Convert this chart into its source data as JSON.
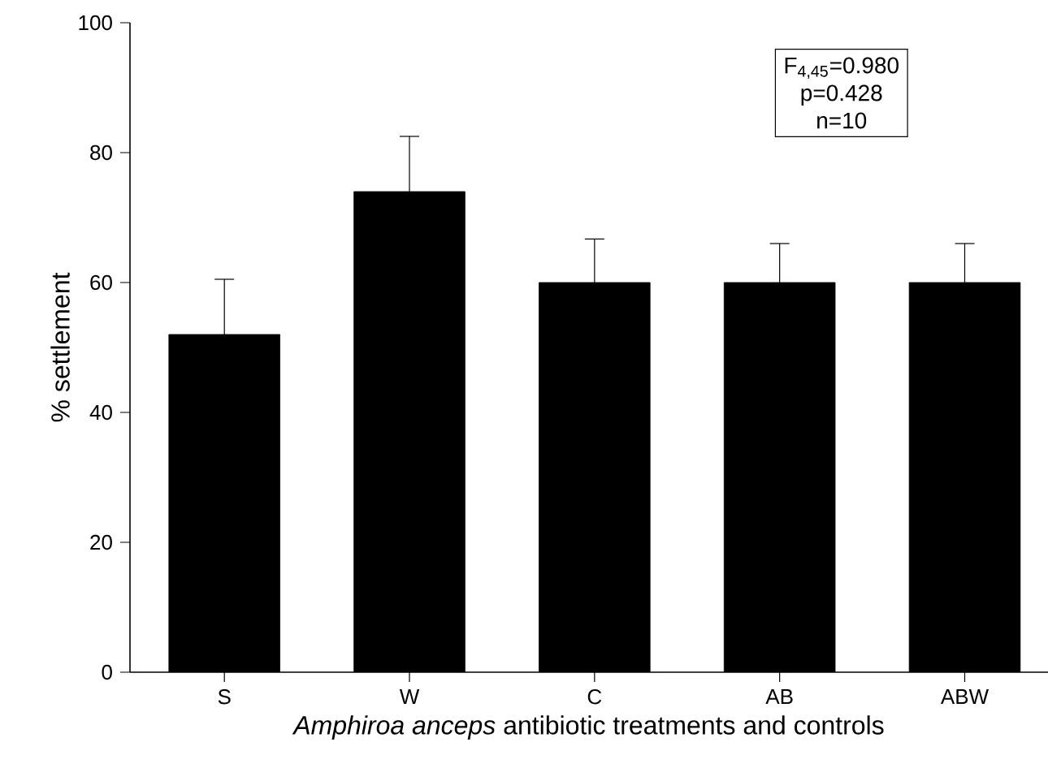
{
  "chart_data": {
    "type": "bar",
    "xlabel": "*Amphiroa anceps* antibiotic treatments and controls",
    "ylabel": "% settlement",
    "categories": [
      "S",
      "W",
      "C",
      "AB",
      "ABW"
    ],
    "values": [
      52,
      74,
      60,
      60,
      60
    ],
    "errors": [
      8.5,
      8.5,
      6.7,
      6,
      6
    ],
    "color": "#000000",
    "ylim": [
      0,
      100
    ],
    "yticks": [
      0,
      20,
      40,
      60,
      80,
      100
    ],
    "annotations": [
      "F$_{4,45}$=0.980",
      "p=0.428",
      "n=10"
    ]
  }
}
